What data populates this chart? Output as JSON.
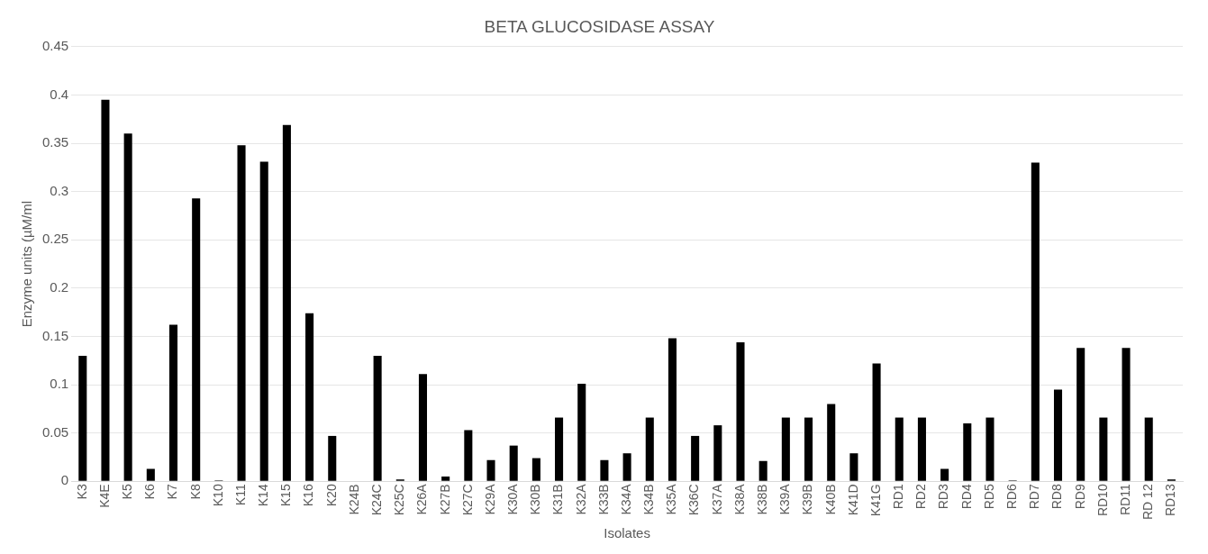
{
  "chart_data": {
    "type": "bar",
    "title": "BETA GLUCOSIDASE ASSAY",
    "xlabel": "Isolates",
    "ylabel": "Enzyme units (µM/ml",
    "categories": [
      "K3",
      "K4E",
      "K5",
      "K6",
      "K7",
      "K8",
      "K10",
      "K11",
      "K14",
      "K15",
      "K16",
      "K20",
      "K24B",
      "K24C",
      "K25C",
      "K26A",
      "K27B",
      "K27C",
      "K29A",
      "K30A",
      "K30B",
      "K31B",
      "K32A",
      "K33B",
      "K34A",
      "K34B",
      "K35A",
      "K36C",
      "K37A",
      "K38A",
      "K38B",
      "K39A",
      "K39B",
      "K40B",
      "K41D",
      "K41G",
      "RD1",
      "RD2",
      "RD3",
      "RD4",
      "RD5",
      "RD6",
      "RD7",
      "RD8",
      "RD9",
      "RD10",
      "RD11",
      "RD 12",
      "RD13"
    ],
    "values": [
      0.13,
      0.395,
      0.36,
      0.013,
      0.162,
      0.293,
      0.001,
      0.348,
      0.331,
      0.369,
      0.174,
      0.047,
      0,
      0.13,
      0.002,
      0.111,
      0.005,
      0.053,
      0.022,
      0.037,
      0.024,
      0.066,
      0.101,
      0.022,
      0.029,
      0.066,
      0.148,
      0.047,
      0.058,
      0.144,
      0.021,
      0.066,
      0.066,
      0.08,
      0.029,
      0.122,
      0.066,
      0.066,
      0.013,
      0.06,
      0.066,
      0.001,
      0.33,
      0.095,
      0.138,
      0.066,
      0.138,
      0.066,
      0.002
    ],
    "color": "#000000",
    "ylim": [
      0,
      0.45
    ],
    "yticks": [
      0,
      0.05,
      0.1,
      0.15,
      0.2,
      0.25,
      0.3,
      0.35,
      0.4,
      0.45
    ],
    "grid": "y",
    "legend": false
  }
}
